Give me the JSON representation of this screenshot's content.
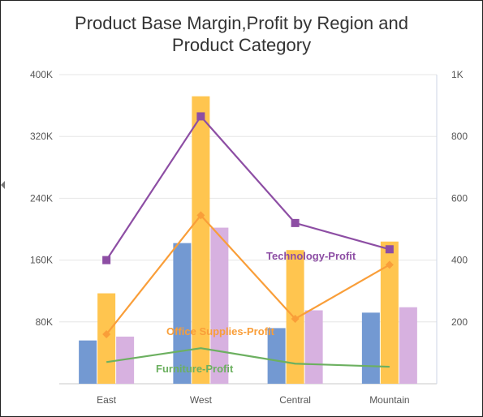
{
  "chart_data": {
    "type": "bar",
    "title_lines": [
      "Product Base Margin,Profit by Region and",
      "Product Category"
    ],
    "categories": [
      "East",
      "West",
      "Central",
      "Mountain"
    ],
    "y_left": {
      "ylim": [
        0,
        400000
      ],
      "ticks": [
        0,
        80000,
        160000,
        240000,
        320000,
        400000
      ],
      "tick_labels": [
        "",
        "80K",
        "160K",
        "240K",
        "320K",
        "400K"
      ]
    },
    "y_right": {
      "ylim": [
        0,
        1000
      ],
      "ticks": [
        0,
        200,
        400,
        600,
        800,
        1000
      ],
      "tick_labels": [
        "",
        "200",
        "400",
        "600",
        "800",
        "1K"
      ]
    },
    "grid": true,
    "bar_series": [
      {
        "values": [
          56000,
          182000,
          72000,
          92000
        ],
        "color": "#7399d2"
      },
      {
        "values": [
          117000,
          372000,
          173000,
          184000
        ],
        "color": "#ffc54f"
      },
      {
        "values": [
          61000,
          202000,
          95000,
          99000
        ],
        "color": "#d7b1e0"
      }
    ],
    "line_series": [
      {
        "name": "Technology-Profit",
        "axis": "right",
        "marker": "square",
        "color": "#8d4ea4",
        "values": [
          400,
          865,
          520,
          435
        ]
      },
      {
        "name": "Office Supplies-Profit",
        "axis": "right",
        "marker": "diamond",
        "color": "#f99e39",
        "values": [
          160,
          545,
          210,
          385
        ]
      },
      {
        "name": "Furniture-Profit",
        "axis": "right",
        "marker": "none",
        "color": "#6cb060",
        "values": [
          70,
          115,
          65,
          55
        ]
      }
    ]
  }
}
